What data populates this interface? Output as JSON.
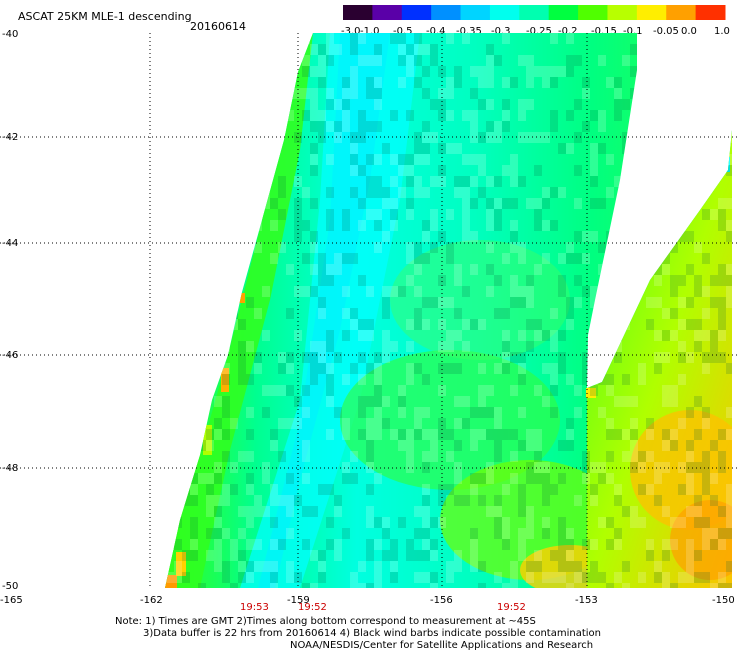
{
  "header": {
    "title": "ASCAT 25KM MLE-1 descending",
    "date": "20160614"
  },
  "colorbar": {
    "labels": [
      "-3.0",
      "-1.0",
      "-0.5",
      "-0.4",
      "-0.35",
      "-0.3",
      "-0.25",
      "-0.2",
      "-0.15",
      "-0.1",
      "-0.05",
      "0.0",
      "1.0"
    ],
    "colors": [
      "#2a0030",
      "#5a00a8",
      "#0030ff",
      "#0090ff",
      "#00d4ff",
      "#00ffee",
      "#00ffb0",
      "#00ff40",
      "#50ff00",
      "#b8ff00",
      "#ffee00",
      "#ffa000",
      "#ff3000"
    ]
  },
  "map": {
    "lon_ticks": [
      "-165",
      "-162",
      "-159",
      "-156",
      "-153",
      "-150"
    ],
    "lat_ticks": [
      "-40",
      "-42",
      "-44",
      "-46",
      "-48",
      "-50"
    ],
    "lon_range": [
      -165,
      -150
    ],
    "lat_range": [
      -50,
      -40
    ]
  },
  "time_labels": [
    "19:53",
    "19:52",
    "19:52"
  ],
  "notes": {
    "line1": "Note: 1) Times are GMT 2)Times along bottom correspond to measurement at ~45S",
    "line2": "3)Data buffer is 22 hrs from 20160614 4) Black wind barbs indicate possible contamination",
    "line3": "NOAA/NESDIS/Center for Satellite Applications and Research"
  }
}
